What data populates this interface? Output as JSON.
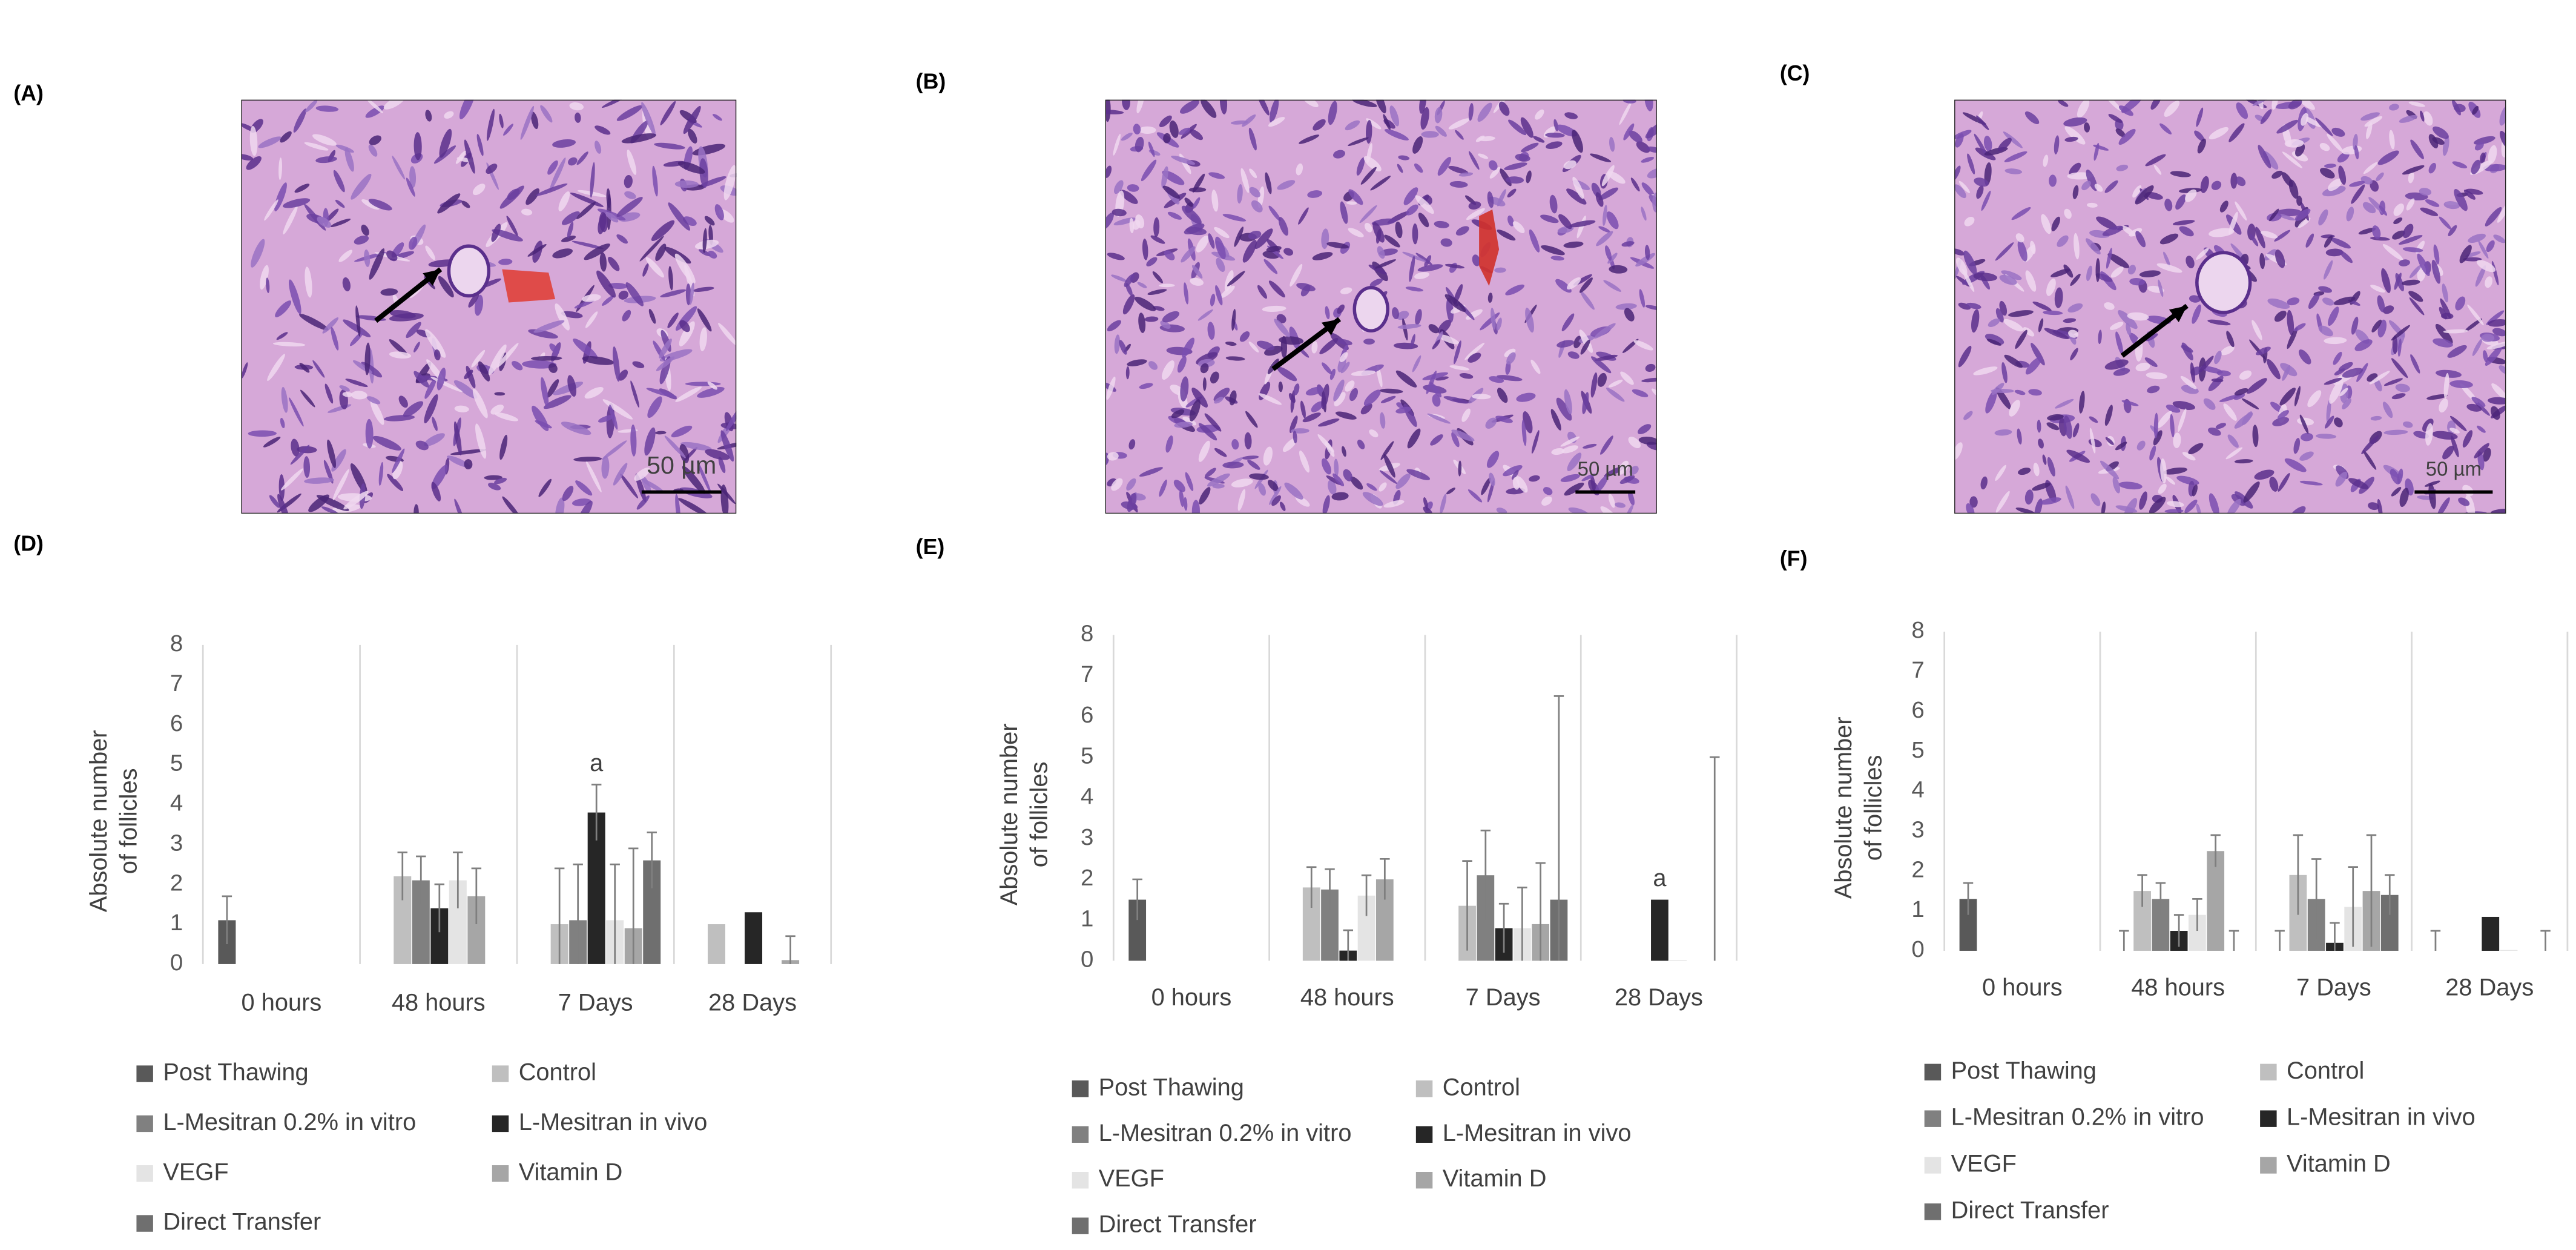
{
  "panel_labels": [
    "(A)",
    "(B)",
    "(C)",
    "(D)",
    "(E)",
    "(F)"
  ],
  "scale_bars": [
    "50 µm",
    "50 µm",
    "50 µm"
  ],
  "chart_data": [
    {
      "type": "bar",
      "y_label": [
        "Absolute number",
        "of follicles"
      ],
      "categories": [
        "0 hours",
        "48 hours",
        "7 Days",
        "28 Days"
      ],
      "ylim": [
        0,
        8
      ],
      "yticks": [
        0,
        1,
        2,
        3,
        4,
        5,
        6,
        7,
        8
      ],
      "series": [
        {
          "name": "Post Thawing",
          "color": "#595959",
          "values": [
            1.1,
            null,
            null,
            null
          ],
          "errors": [
            0.6,
            null,
            null,
            null
          ]
        },
        {
          "name": "Control",
          "color": "#bfbfbf",
          "values": [
            null,
            2.2,
            1.0,
            1.0
          ],
          "errors": [
            null,
            0.6,
            1.4,
            null
          ]
        },
        {
          "name": "L-Mesitran 0.2% in vitro",
          "color": "#808080",
          "values": [
            null,
            2.1,
            1.1,
            null
          ],
          "errors": [
            null,
            0.6,
            1.4,
            null
          ]
        },
        {
          "name": "L-Mesitran in vivo",
          "color": "#262626",
          "values": [
            null,
            1.4,
            3.8,
            1.3
          ],
          "errors": [
            null,
            0.6,
            0.7,
            null
          ]
        },
        {
          "name": "VEGF",
          "color": "#e4e4e4",
          "values": [
            null,
            2.1,
            1.1,
            null
          ],
          "errors": [
            null,
            0.7,
            1.4,
            null
          ]
        },
        {
          "name": "Vitamin D",
          "color": "#a6a6a6",
          "values": [
            null,
            1.7,
            0.9,
            0.1
          ],
          "errors": [
            null,
            0.7,
            2.0,
            0.6
          ]
        },
        {
          "name": "Direct Transfer",
          "color": "#6f6f6f",
          "values": [
            null,
            null,
            2.6,
            null
          ],
          "errors": [
            null,
            null,
            0.7,
            null
          ]
        }
      ],
      "annotations": [
        {
          "text": "a",
          "category": "7 Days",
          "series": "L-Mesitran in vivo"
        }
      ]
    },
    {
      "type": "bar",
      "y_label": [
        "Absolute number",
        "of follicles"
      ],
      "categories": [
        "0 hours",
        "48 hours",
        "7 Days",
        "28 Days"
      ],
      "ylim": [
        0,
        8
      ],
      "yticks": [
        0,
        1,
        2,
        3,
        4,
        5,
        6,
        7,
        8
      ],
      "series": [
        {
          "name": "Post Thawing",
          "color": "#595959",
          "values": [
            1.5,
            null,
            null,
            null
          ],
          "errors": [
            0.5,
            null,
            null,
            null
          ]
        },
        {
          "name": "Control",
          "color": "#bfbfbf",
          "values": [
            null,
            1.8,
            1.35,
            null
          ],
          "errors": [
            null,
            0.5,
            1.1,
            null
          ]
        },
        {
          "name": "L-Mesitran 0.2% in vitro",
          "color": "#808080",
          "values": [
            null,
            1.75,
            2.1,
            null
          ],
          "errors": [
            null,
            0.5,
            1.1,
            null
          ]
        },
        {
          "name": "L-Mesitran in vivo",
          "color": "#262626",
          "values": [
            null,
            0.25,
            0.8,
            1.5
          ],
          "errors": [
            null,
            0.5,
            0.6,
            null
          ]
        },
        {
          "name": "VEGF",
          "color": "#e4e4e4",
          "values": [
            null,
            1.6,
            0.8,
            0.02
          ],
          "errors": [
            null,
            0.5,
            1.0,
            null
          ]
        },
        {
          "name": "Vitamin D",
          "color": "#a6a6a6",
          "values": [
            null,
            2.0,
            0.9,
            null
          ],
          "errors": [
            null,
            0.5,
            1.5,
            null
          ]
        },
        {
          "name": "Direct Transfer",
          "color": "#6f6f6f",
          "values": [
            null,
            null,
            1.5,
            0
          ],
          "errors": [
            null,
            null,
            5.0,
            5.0
          ]
        }
      ],
      "annotations": [
        {
          "text": "a",
          "category": "28 Days",
          "series": "L-Mesitran in vivo"
        }
      ]
    },
    {
      "type": "bar",
      "y_label": [
        "Absolute number",
        "of follicles"
      ],
      "categories": [
        "0 hours",
        "48 hours",
        "7 Days",
        "28 Days"
      ],
      "ylim": [
        0,
        8
      ],
      "yticks": [
        0,
        1,
        2,
        3,
        4,
        5,
        6,
        7,
        8
      ],
      "series": [
        {
          "name": "Post Thawing",
          "color": "#595959",
          "values": [
            1.3,
            0,
            0,
            0
          ],
          "errors": [
            0.4,
            0.5,
            0.5,
            0.5
          ]
        },
        {
          "name": "Control",
          "color": "#bfbfbf",
          "values": [
            null,
            1.5,
            1.9,
            null
          ],
          "errors": [
            null,
            0.4,
            1.0,
            null
          ]
        },
        {
          "name": "L-Mesitran 0.2% in vitro",
          "color": "#808080",
          "values": [
            null,
            1.3,
            1.3,
            null
          ],
          "errors": [
            null,
            0.4,
            1.0,
            null
          ]
        },
        {
          "name": "L-Mesitran in vivo",
          "color": "#262626",
          "values": [
            null,
            0.5,
            0.2,
            0.85
          ],
          "errors": [
            null,
            0.4,
            0.5,
            null
          ]
        },
        {
          "name": "VEGF",
          "color": "#e4e4e4",
          "values": [
            null,
            0.9,
            1.1,
            0.02
          ],
          "errors": [
            null,
            0.4,
            1.0,
            null
          ]
        },
        {
          "name": "Vitamin D",
          "color": "#a6a6a6",
          "values": [
            null,
            2.5,
            1.5,
            null
          ],
          "errors": [
            null,
            0.4,
            1.4,
            null
          ]
        },
        {
          "name": "Direct Transfer",
          "color": "#6f6f6f",
          "values": [
            null,
            0,
            1.4,
            0
          ],
          "errors": [
            null,
            0.5,
            0.5,
            0.5
          ]
        }
      ],
      "annotations": []
    }
  ]
}
